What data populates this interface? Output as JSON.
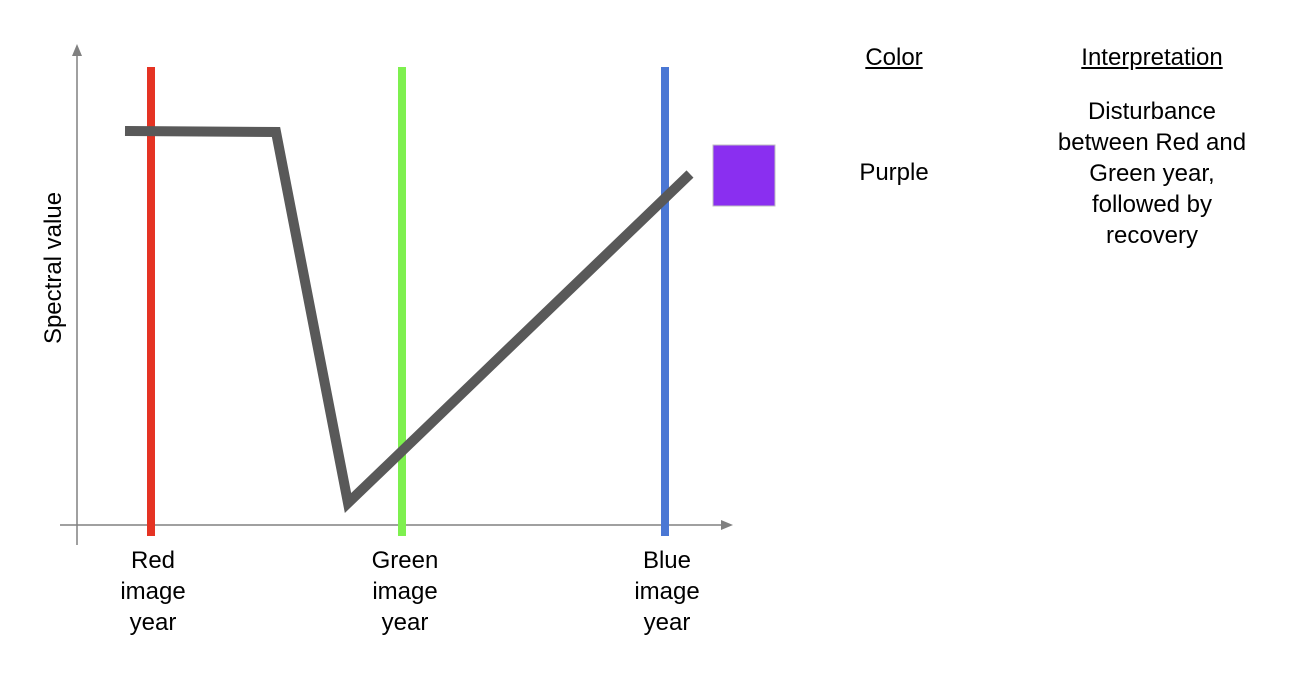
{
  "diagram": {
    "ylabel": "Spectral value",
    "markers": [
      {
        "label": "Red image year",
        "lines": [
          "Red",
          "image",
          "year"
        ],
        "color": "#e53323"
      },
      {
        "label": "Green image year",
        "lines": [
          "Green",
          "image",
          "year"
        ],
        "color": "#7ef04f"
      },
      {
        "label": "Blue image year",
        "lines": [
          "Blue",
          "image",
          "year"
        ],
        "color": "#4a77d4"
      }
    ],
    "trajectory_color": "#595959",
    "swatch_color": "#8a2ff0",
    "axis_color": "#808080"
  },
  "legend": {
    "color_header": "Color",
    "interpretation_header": "Interpretation",
    "color_value": "Purple",
    "interpretation_value": "Disturbance between Red and Green year, followed by recovery"
  }
}
